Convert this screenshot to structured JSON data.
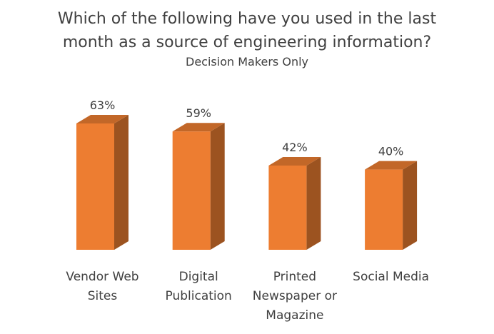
{
  "chart_data": {
    "type": "bar3d",
    "title": "Which of the following have you used in the last month as a source of engineering information?",
    "subtitle": "Decision Makers Only",
    "categories": [
      "Vendor Web Sites",
      "Digital Publication",
      "Printed Newspaper or Magazine",
      "Social Media"
    ],
    "values": [
      63,
      59,
      42,
      40
    ],
    "value_labels": [
      "63%",
      "59%",
      "42%",
      "40%"
    ],
    "color": "#ed7d31"
  }
}
